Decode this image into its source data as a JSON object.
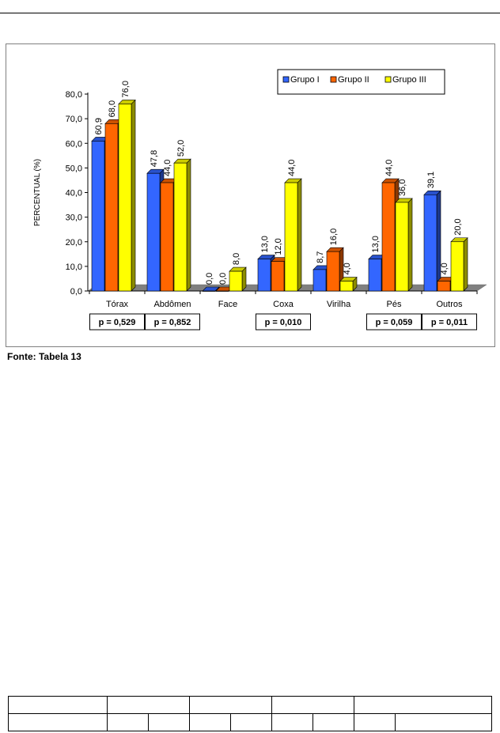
{
  "chart_data": {
    "type": "bar",
    "style": "3d-clustered-column",
    "ylabel": "PERCENTUAL (%)",
    "ylim": [
      0,
      80
    ],
    "yticks": [
      "0,0",
      "10,0",
      "20,0",
      "30,0",
      "40,0",
      "50,0",
      "60,0",
      "70,0",
      "80,0"
    ],
    "grid": false,
    "legend_position": "top-right",
    "categories": [
      "Tórax",
      "Abdômen",
      "Face",
      "Coxa",
      "Virilha",
      "Pés",
      "Outros"
    ],
    "series": [
      {
        "name": "Grupo I",
        "color": "#3366ff",
        "values": [
          60.9,
          47.8,
          0.0,
          13.0,
          8.7,
          13.0,
          39.1
        ],
        "labels": [
          "60,9",
          "47,8",
          "0,0",
          "13,0",
          "8,7",
          "13,0",
          "39,1"
        ]
      },
      {
        "name": "Grupo II",
        "color": "#ff6600",
        "values": [
          68.0,
          44.0,
          0.0,
          12.0,
          16.0,
          44.0,
          4.0
        ],
        "labels": [
          "68,0",
          "44,0",
          "0,0",
          "12,0",
          "16,0",
          "44,0",
          "4,0"
        ]
      },
      {
        "name": "Grupo III",
        "color": "#ffff00",
        "values": [
          76.0,
          52.0,
          8.0,
          44.0,
          4.0,
          36.0,
          20.0
        ],
        "labels": [
          "76,0",
          "52,0",
          "8,0",
          "44,0",
          "4,0",
          "36,0",
          "20,0"
        ]
      }
    ],
    "p_values": [
      "p = 0,529",
      "p = 0,852",
      "",
      "p = 0,010",
      "",
      "p = 0,059",
      "p = 0,011"
    ]
  },
  "source_note": "Fonte: Tabela 13"
}
